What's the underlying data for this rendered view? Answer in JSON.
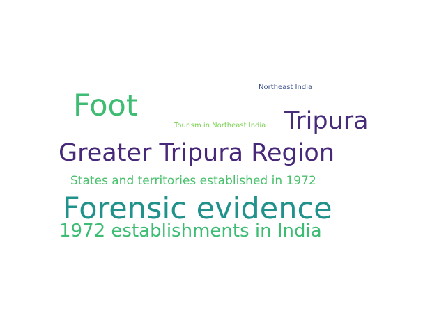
{
  "words": [
    {
      "text": "Northeast India",
      "color": "#3b528b"
    },
    {
      "text": "Foot",
      "color": "#3fbc73"
    },
    {
      "text": "Tripura",
      "color": "#472c7a"
    },
    {
      "text": "Tourism in Northeast India",
      "color": "#7ad151"
    },
    {
      "text": "Greater Tripura Region",
      "color": "#482878"
    },
    {
      "text": "States and territories established in 1972",
      "color": "#4ac16d"
    },
    {
      "text": "Forensic evidence",
      "color": "#21918c"
    },
    {
      "text": "1972 establishments in India",
      "color": "#3dbc74"
    }
  ]
}
